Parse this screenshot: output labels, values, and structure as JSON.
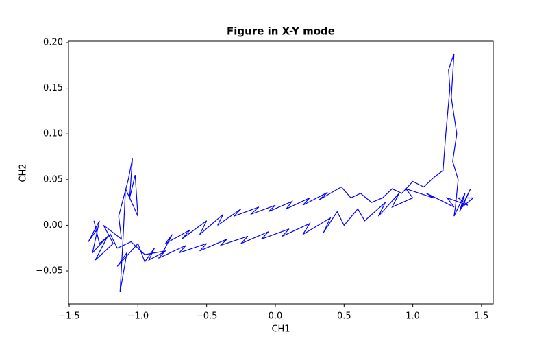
{
  "chart_data": {
    "type": "line",
    "title": "Figure in X-Y mode",
    "xlabel": "CH1",
    "ylabel": "CH2",
    "series": [
      {
        "color": "#0000ff",
        "x": [
          -1.3,
          -1.36,
          -1.28,
          -1.33,
          -1.22,
          -1.31,
          -1.18,
          -1.25,
          -1.12,
          -1.14,
          -1.07,
          -1.04,
          -1.06,
          -1.02,
          -1.0,
          -1.09,
          -1.11,
          -1.13,
          -1.08,
          -1.15,
          -1.0,
          -0.95,
          -0.88,
          -0.92,
          -0.82,
          -0.75,
          -0.8,
          -0.62,
          -0.68,
          -0.5,
          -0.55,
          -0.38,
          -0.42,
          -0.25,
          -0.3,
          -0.12,
          -0.18,
          0.0,
          -0.05,
          0.12,
          0.08,
          0.25,
          0.2,
          0.38,
          0.32,
          0.48,
          0.55,
          0.62,
          0.7,
          0.78,
          0.85,
          0.92,
          1.0,
          1.08,
          1.15,
          1.22,
          1.24,
          1.27,
          1.26,
          1.3,
          1.28,
          1.32,
          1.29,
          1.33,
          1.31,
          1.3,
          1.38,
          1.34,
          1.42,
          1.36,
          1.44,
          1.33,
          1.4,
          1.25,
          1.3,
          1.1,
          1.15,
          0.95,
          1.0,
          0.85,
          0.9,
          0.75,
          0.8,
          0.65,
          0.6,
          0.5,
          0.45,
          0.35,
          0.4,
          0.2,
          0.25,
          0.05,
          0.1,
          -0.1,
          -0.05,
          -0.25,
          -0.2,
          -0.4,
          -0.35,
          -0.55,
          -0.5,
          -0.7,
          -0.65,
          -0.85,
          -0.8,
          -0.95,
          -1.05,
          -1.15,
          -1.2,
          -1.28,
          -1.32
        ],
        "values": [
          -0.005,
          -0.018,
          0.005,
          -0.03,
          -0.012,
          -0.038,
          -0.02,
          0.0,
          -0.015,
          0.01,
          0.05,
          0.073,
          0.03,
          0.055,
          0.01,
          0.04,
          -0.02,
          -0.073,
          -0.03,
          -0.045,
          -0.02,
          -0.04,
          -0.025,
          -0.038,
          -0.03,
          -0.01,
          -0.02,
          -0.005,
          -0.015,
          0.005,
          -0.01,
          0.012,
          0.0,
          0.018,
          0.01,
          0.02,
          0.012,
          0.022,
          0.015,
          0.026,
          0.018,
          0.03,
          0.022,
          0.036,
          0.028,
          0.042,
          0.03,
          0.035,
          0.025,
          0.03,
          0.04,
          0.035,
          0.048,
          0.042,
          0.052,
          0.06,
          0.1,
          0.15,
          0.17,
          0.188,
          0.14,
          0.1,
          0.07,
          0.05,
          0.02,
          0.01,
          0.035,
          0.015,
          0.04,
          0.02,
          0.03,
          0.03,
          0.022,
          0.03,
          0.02,
          0.035,
          0.03,
          0.04,
          0.03,
          0.02,
          0.035,
          0.01,
          0.025,
          0.005,
          0.018,
          0.0,
          0.015,
          -0.008,
          0.008,
          -0.01,
          0.002,
          -0.012,
          -0.004,
          -0.015,
          -0.007,
          -0.02,
          -0.012,
          -0.022,
          -0.015,
          -0.028,
          -0.02,
          -0.03,
          -0.022,
          -0.036,
          -0.028,
          -0.032,
          -0.018,
          -0.025,
          -0.01,
          -0.02,
          0.005
        ]
      }
    ],
    "xlim": [
      -1.505,
      1.585
    ],
    "ylim": [
      -0.086,
      0.2015
    ],
    "xticks": [
      {
        "value": -1.5,
        "label": "−1.5"
      },
      {
        "value": -1.0,
        "label": "−1.0"
      },
      {
        "value": -0.5,
        "label": "−0.5"
      },
      {
        "value": 0,
        "label": "0.0"
      },
      0.5,
      {
        "value": 1.0,
        "label": "1.0"
      },
      1.5
    ],
    "yticks": [
      {
        "value": -0.05,
        "label": "−0.05"
      },
      {
        "value": 0,
        "label": "0.00"
      },
      0.05,
      {
        "value": 0.1,
        "label": "0.10"
      },
      0.15,
      {
        "value": 0.2,
        "label": "0.20"
      }
    ]
  }
}
